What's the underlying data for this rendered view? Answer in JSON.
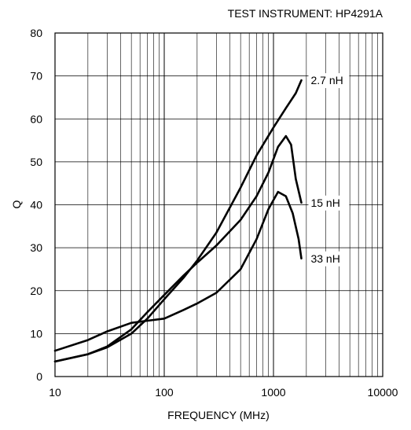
{
  "chart_data": {
    "type": "line",
    "title": "TEST INSTRUMENT: HP4291A",
    "xlabel": "FREQUENCY (MHz)",
    "ylabel": "Q",
    "x_scale": "log",
    "xlim": [
      10,
      10000
    ],
    "ylim": [
      0,
      80
    ],
    "x_ticks": [
      10,
      100,
      1000,
      10000
    ],
    "x_tick_labels": [
      "10",
      "100",
      "1000",
      "10000"
    ],
    "y_ticks": [
      0,
      10,
      20,
      30,
      40,
      50,
      60,
      70,
      80
    ],
    "y_tick_labels": [
      "0",
      "10",
      "20",
      "30",
      "40",
      "50",
      "60",
      "70",
      "80"
    ],
    "grid": true,
    "legend": "none",
    "series": [
      {
        "name": "2.7 nH",
        "x": [
          10,
          20,
          30,
          50,
          70,
          100,
          150,
          200,
          300,
          500,
          700,
          1000,
          1300,
          1600,
          1800
        ],
        "y": [
          3.5,
          5.2,
          6.8,
          10,
          13.5,
          18,
          23,
          27,
          33.5,
          44,
          51.5,
          58,
          62.5,
          66,
          69
        ]
      },
      {
        "name": "15 nH",
        "x": [
          10,
          20,
          30,
          50,
          70,
          100,
          150,
          200,
          300,
          500,
          700,
          900,
          1100,
          1300,
          1450,
          1600,
          1800
        ],
        "y": [
          3.5,
          5.2,
          7,
          11,
          15,
          19,
          23.5,
          26.5,
          30.5,
          36.5,
          42,
          47.5,
          53.5,
          56,
          54,
          46,
          40.5
        ]
      },
      {
        "name": "33 nH",
        "x": [
          10,
          20,
          30,
          50,
          70,
          100,
          150,
          200,
          300,
          500,
          700,
          900,
          1100,
          1300,
          1500,
          1700,
          1800
        ],
        "y": [
          6,
          8.5,
          10.5,
          12.5,
          13,
          13.5,
          15.5,
          17,
          19.5,
          25,
          32,
          39,
          43,
          42,
          38,
          32,
          27.5
        ]
      }
    ]
  }
}
